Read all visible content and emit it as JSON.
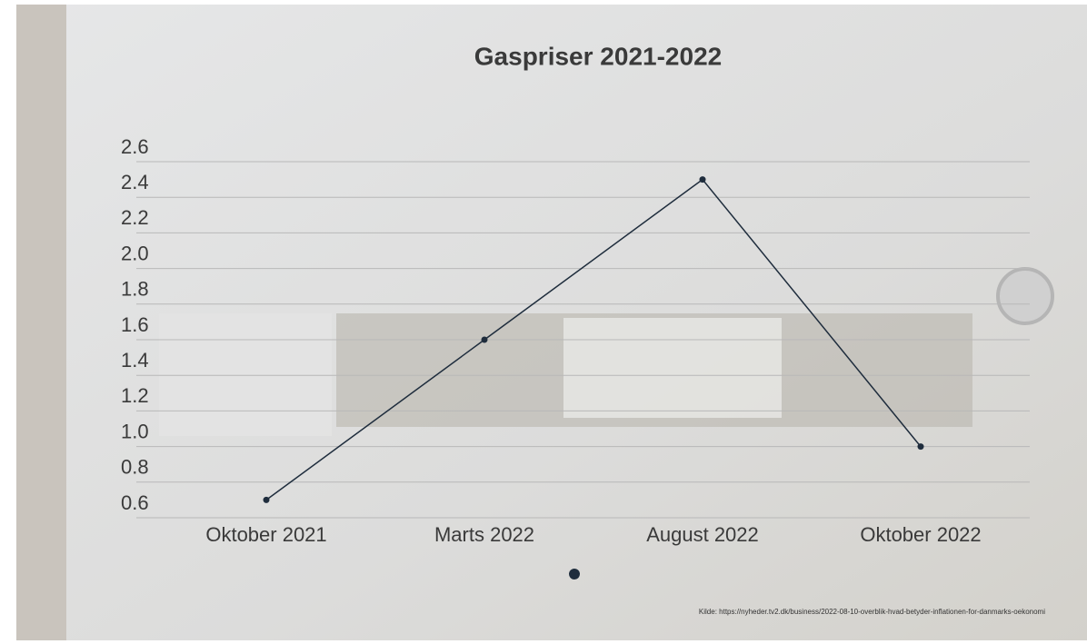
{
  "chart_data": {
    "type": "line",
    "title": "Gaspriser 2021-2022",
    "categories": [
      "Oktober 2021",
      "Marts 2022",
      "August 2022",
      "Oktober 2022"
    ],
    "values": [
      0.7,
      1.6,
      2.5,
      1.0
    ],
    "color": "#1f2d3d",
    "ylim": [
      0.6,
      2.6
    ],
    "yticks": [
      {
        "value": 0.6,
        "label": "0.6"
      },
      {
        "value": 0.8,
        "label": "0.8"
      },
      {
        "value": 1.0,
        "label": "1.0"
      },
      {
        "value": 1.2,
        "label": "1.2"
      },
      {
        "value": 1.4,
        "label": "1.4"
      },
      {
        "value": 1.6,
        "label": "1.6"
      },
      {
        "value": 1.8,
        "label": "1.8"
      },
      {
        "value": 2.0,
        "label": "2.0"
      },
      {
        "value": 2.2,
        "label": "2.2"
      },
      {
        "value": 2.4,
        "label": "2.4"
      },
      {
        "value": 2.6,
        "label": "2.6"
      }
    ],
    "grid": true,
    "source": "Kilde: https://nyheder.tv2.dk/business/2022-08-10-overblik-hvad-betyder-inflationen-for-danmarks-oekonomi"
  }
}
